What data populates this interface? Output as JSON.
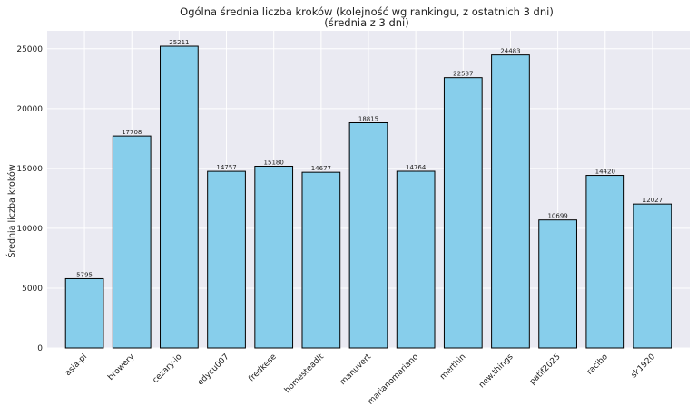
{
  "chart_data": {
    "type": "bar",
    "title": "Ogólna średnia liczba kroków (kolejność wg rankingu, z ostatnich 3 dni)",
    "subtitle": "(średnia z 3 dni)",
    "xlabel": "",
    "ylabel": "Średnia liczba kroków",
    "categories": [
      "asia-pl",
      "browery",
      "cezary-io",
      "edycu007",
      "fredkese",
      "homesteadlt",
      "manuvert",
      "marianomariano",
      "merthin",
      "new.things",
      "patif2025",
      "racibo",
      "sk1920"
    ],
    "values": [
      5795,
      17708,
      25211,
      14757,
      15180,
      14677,
      18815,
      14764,
      22587,
      24483,
      10699,
      14420,
      12027
    ],
    "ylim": [
      0,
      26500
    ],
    "yticks": [
      0,
      5000,
      10000,
      15000,
      20000,
      25000
    ],
    "grid": true,
    "bar_color": "#87ceeb",
    "bar_edge_color": "#000000",
    "plot_background": "#eaeaf2",
    "grid_color": "#ffffff"
  }
}
